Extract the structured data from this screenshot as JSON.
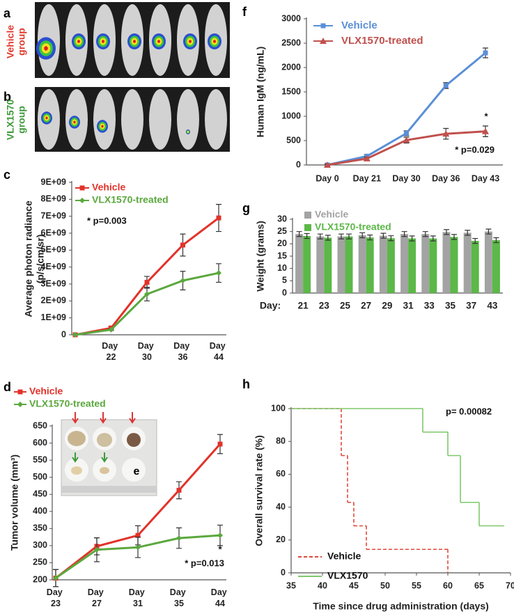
{
  "images": [
    {
      "panel": "a",
      "label": [
        "Vehicle",
        "group"
      ]
    },
    {
      "panel": "b",
      "label": [
        "VLX1570",
        "group"
      ]
    }
  ],
  "inset": {
    "panel": "e"
  },
  "chart_data": [
    {
      "panel": "c",
      "type": "line",
      "ylabel": [
        "Average photon radiance",
        "(p/s/cm/sr)"
      ],
      "categories": [
        null,
        "Day 22",
        "Day 30",
        "Day 36",
        "Day 44"
      ],
      "series": [
        {
          "name": "Vehicle",
          "color": "#e2322a",
          "marker": "square",
          "values": [
            0,
            400000000,
            3100000000,
            5300000000,
            6900000000
          ],
          "errors": [
            0,
            100000000,
            350000000,
            650000000,
            800000000
          ]
        },
        {
          "name": "VLX1570-treated",
          "color": "#5ba83e",
          "marker": "diamond",
          "values": [
            0,
            300000000,
            2400000000,
            3200000000,
            3650000000
          ],
          "errors": [
            0,
            50000000,
            400000000,
            550000000,
            550000000
          ]
        }
      ],
      "ylim": [
        0,
        9000000000
      ],
      "yticks": [
        0,
        {
          "value": 1000000000,
          "label": "1E+09"
        },
        {
          "value": 2000000000,
          "label": "2E+09"
        },
        {
          "value": 3000000000,
          "label": "3E+09"
        },
        {
          "value": 4000000000,
          "label": "4E+09"
        },
        {
          "value": 5000000000,
          "label": "5E+09"
        },
        {
          "value": 6000000000,
          "label": "6E+09"
        },
        {
          "value": 7000000000,
          "label": "7E+09"
        },
        {
          "value": 8000000000,
          "label": "8E+09"
        },
        {
          "value": 9000000000,
          "label": "9E+09"
        }
      ],
      "annotations": [
        "* p=0.003"
      ]
    },
    {
      "panel": "d",
      "type": "line",
      "ylabel": "Tumor volume (mm³)",
      "categories": [
        "Day 23",
        "Day 27",
        "Day 31",
        "Day 35",
        "Day 44"
      ],
      "series": [
        {
          "name": "Vehicle",
          "color": "#e2322a",
          "marker": "square",
          "values": [
            205,
            298,
            330,
            462,
            597
          ],
          "errors": [
            25,
            25,
            28,
            25,
            28
          ]
        },
        {
          "name": "VLX1570-treated",
          "color": "#5ba83e",
          "marker": "diamond",
          "values": [
            205,
            288,
            295,
            322,
            330
          ],
          "errors": [
            25,
            35,
            30,
            30,
            30
          ]
        }
      ],
      "ylim": [
        200,
        650
      ],
      "yticks": [
        200,
        250,
        300,
        350,
        400,
        450,
        500,
        550,
        600,
        650
      ],
      "annotations": [
        "*",
        "* p=0.013"
      ]
    },
    {
      "panel": "f",
      "type": "line",
      "ylabel": "Human IgM (ng/mL)",
      "categories": [
        "Day 0",
        "Day 21",
        "Day 30",
        "Day 36",
        "Day 43"
      ],
      "series": [
        {
          "name": "Vehicle",
          "color": "#5b8fd6",
          "marker": "square",
          "values": [
            0,
            180,
            650,
            1630,
            2300
          ],
          "errors": [
            20,
            30,
            50,
            60,
            100
          ]
        },
        {
          "name": "VLX1570-treated",
          "color": "#c0504d",
          "marker": "triangle",
          "values": [
            0,
            130,
            510,
            640,
            690
          ],
          "errors": [
            20,
            30,
            60,
            110,
            110
          ]
        }
      ],
      "ylim": [
        0,
        3000
      ],
      "yticks": [
        0,
        500,
        1000,
        1500,
        2000,
        2500,
        3000
      ],
      "annotations": [
        "*",
        "* p=0.029"
      ]
    },
    {
      "panel": "g",
      "type": "bar",
      "ylabel": "Weight (grams)",
      "xlabel": "Day:",
      "categories": [
        "21",
        "23",
        "25",
        "27",
        "29",
        "31",
        "33",
        "35",
        "37",
        "43"
      ],
      "series": [
        {
          "name": "Vehicle",
          "color": "#a3a3a3",
          "values": [
            24,
            23,
            23,
            23.5,
            23.3,
            24,
            24,
            24.8,
            24.5,
            25
          ],
          "errors": [
            1,
            1,
            1,
            1,
            1,
            1,
            1,
            1,
            1,
            1
          ]
        },
        {
          "name": "VLX1570-treated",
          "color": "#5cb848",
          "values": [
            23.2,
            22.5,
            23,
            22.6,
            22.3,
            22.2,
            22.2,
            22.8,
            21.2,
            21.5
          ],
          "errors": [
            1,
            1,
            1,
            1,
            1,
            1,
            1,
            1,
            1,
            1
          ]
        }
      ],
      "ylim": [
        0,
        30
      ],
      "yticks": [
        0,
        5,
        10,
        15,
        20,
        25,
        30
      ]
    },
    {
      "panel": "h",
      "type": "step",
      "xlabel": "Time since drug administration (days)",
      "ylabel": "Overall survival rate (%)",
      "series": [
        {
          "name": "Vehicle",
          "color": "#e0483a",
          "dash": true,
          "x": [
            35,
            43,
            44,
            45,
            47,
            60
          ],
          "values": [
            100,
            71.4,
            42.9,
            28.6,
            14.3,
            0
          ]
        },
        {
          "name": "VLX1570",
          "color": "#7ec86b",
          "dash": false,
          "x": [
            35,
            56,
            60,
            62,
            65,
            69
          ],
          "values": [
            100,
            85.7,
            71.4,
            42.9,
            28.6,
            28.6
          ]
        }
      ],
      "xlim": [
        35,
        70
      ],
      "xticks": [
        35,
        40,
        45,
        50,
        55,
        60,
        65,
        70
      ],
      "ylim": [
        0,
        100
      ],
      "yticks": [
        0,
        20,
        40,
        60,
        80,
        100
      ],
      "annotations": [
        "p= 0.00082"
      ]
    }
  ]
}
